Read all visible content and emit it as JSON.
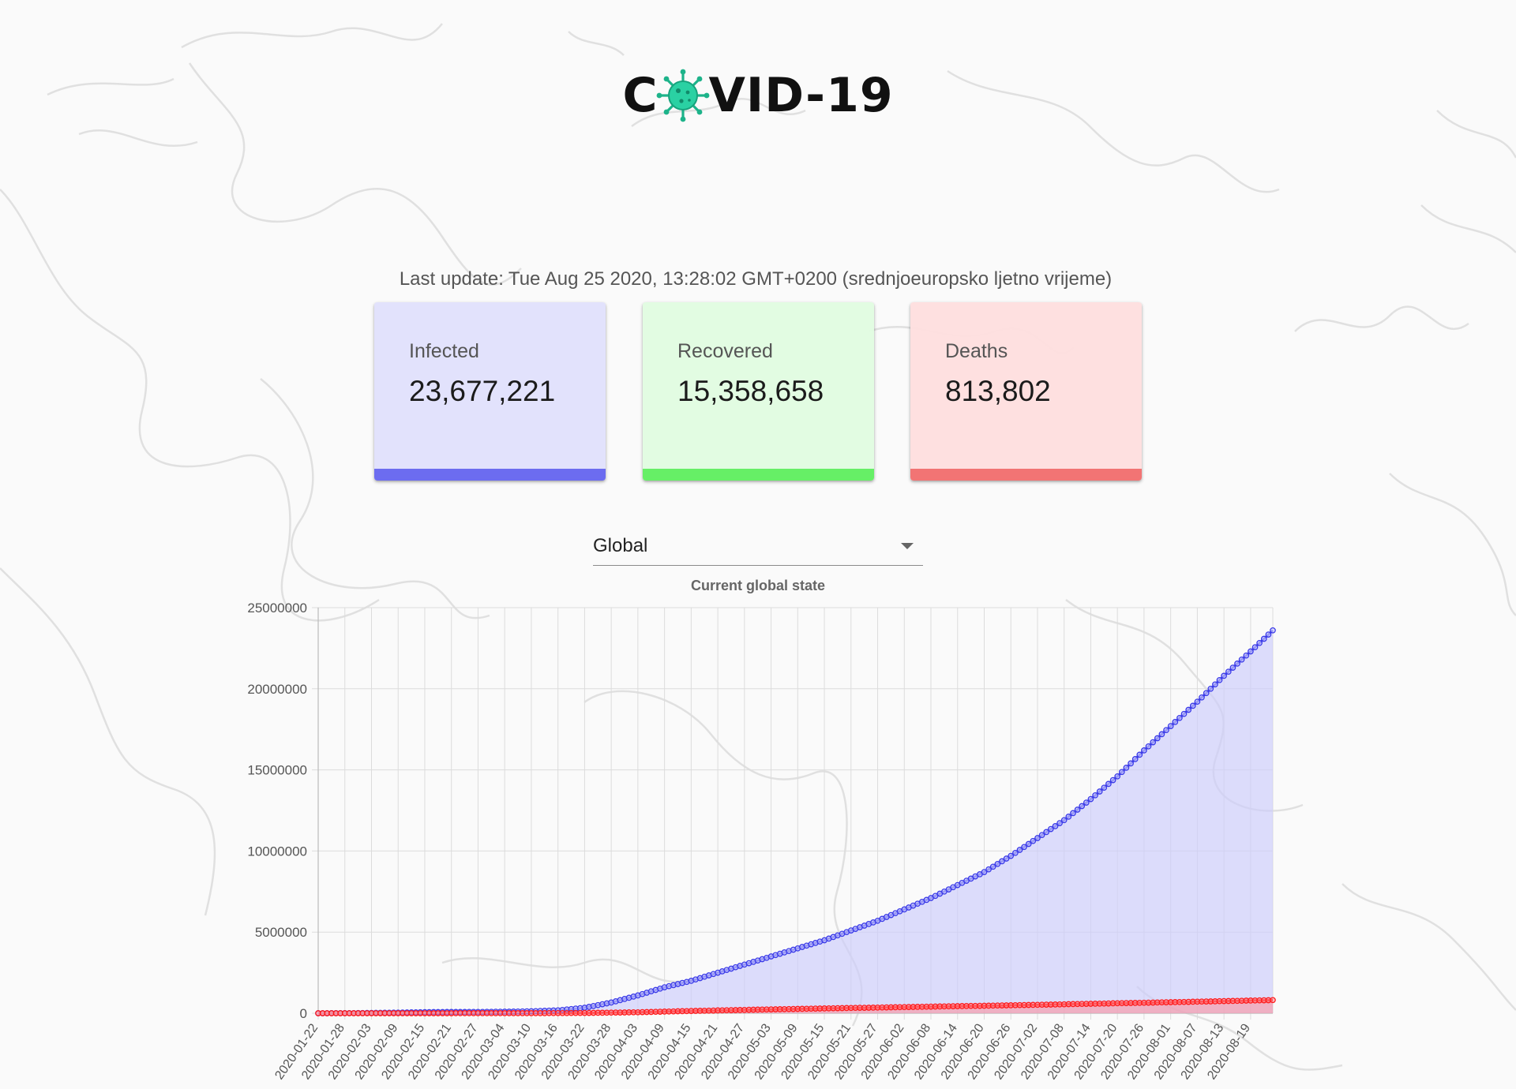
{
  "header": {
    "logo_left": "C",
    "logo_right": "VID-19"
  },
  "update": {
    "label": "Last update:",
    "timestamp": "Tue Aug 25 2020, 13:28:02 GMT+0200 (srednjoeuropsko ljetno vrijeme)"
  },
  "cards": [
    {
      "label": "Infected",
      "value": "23,677,221",
      "color": "#6c6cf0"
    },
    {
      "label": "Recovered",
      "value": "15,358,658",
      "color": "#66ef66"
    },
    {
      "label": "Deaths",
      "value": "813,802",
      "color": "#f27474"
    }
  ],
  "selector": {
    "selected": "Global"
  },
  "colors": {
    "virus": "#20c997",
    "infected_line": "#3a3ae8",
    "infected_fill": "rgba(205,205,252,0.65)",
    "deaths_line": "#ff1a1a",
    "deaths_fill": "rgba(255,140,150,0.55)"
  },
  "chart_data": {
    "type": "line",
    "title": "Current global state",
    "x_start": "2020-01-22",
    "x_end": "2020-08-24",
    "xtick_labels": [
      "2020-01-22",
      "2020-01-28",
      "2020-02-03",
      "2020-02-09",
      "2020-02-15",
      "2020-02-21",
      "2020-02-27",
      "2020-03-04",
      "2020-03-10",
      "2020-03-16",
      "2020-03-22",
      "2020-03-28",
      "2020-04-03",
      "2020-04-09",
      "2020-04-15",
      "2020-04-21",
      "2020-04-27",
      "2020-05-03",
      "2020-05-09",
      "2020-05-15",
      "2020-05-21",
      "2020-05-27",
      "2020-06-02",
      "2020-06-08",
      "2020-06-14",
      "2020-06-20",
      "2020-06-26",
      "2020-07-02",
      "2020-07-08",
      "2020-07-14",
      "2020-07-20",
      "2020-07-26",
      "2020-08-01",
      "2020-08-07",
      "2020-08-13",
      "2020-08-19"
    ],
    "ylim": [
      0,
      25000000
    ],
    "yticks": [
      0,
      5000000,
      10000000,
      15000000,
      20000000,
      25000000
    ],
    "grid": true,
    "series": [
      {
        "key": "infected",
        "points": [
          [
            "2020-01-22",
            550
          ],
          [
            "2020-01-28",
            6000
          ],
          [
            "2020-02-03",
            20000
          ],
          [
            "2020-02-09",
            40000
          ],
          [
            "2020-02-15",
            69000
          ],
          [
            "2020-02-21",
            77000
          ],
          [
            "2020-02-27",
            83000
          ],
          [
            "2020-03-04",
            95000
          ],
          [
            "2020-03-10",
            120000
          ],
          [
            "2020-03-16",
            180000
          ],
          [
            "2020-03-22",
            340000
          ],
          [
            "2020-03-28",
            660000
          ],
          [
            "2020-04-03",
            1100000
          ],
          [
            "2020-04-09",
            1600000
          ],
          [
            "2020-04-15",
            2000000
          ],
          [
            "2020-04-21",
            2500000
          ],
          [
            "2020-04-27",
            3000000
          ],
          [
            "2020-05-03",
            3500000
          ],
          [
            "2020-05-09",
            4000000
          ],
          [
            "2020-05-15",
            4500000
          ],
          [
            "2020-05-21",
            5100000
          ],
          [
            "2020-05-27",
            5700000
          ],
          [
            "2020-06-02",
            6400000
          ],
          [
            "2020-06-08",
            7100000
          ],
          [
            "2020-06-14",
            7900000
          ],
          [
            "2020-06-20",
            8700000
          ],
          [
            "2020-06-26",
            9700000
          ],
          [
            "2020-07-02",
            10800000
          ],
          [
            "2020-07-08",
            11900000
          ],
          [
            "2020-07-14",
            13200000
          ],
          [
            "2020-07-20",
            14600000
          ],
          [
            "2020-07-26",
            16200000
          ],
          [
            "2020-08-01",
            17700000
          ],
          [
            "2020-08-07",
            19200000
          ],
          [
            "2020-08-13",
            20800000
          ],
          [
            "2020-08-19",
            22300000
          ],
          [
            "2020-08-24",
            23600000
          ]
        ]
      },
      {
        "key": "deaths",
        "points": [
          [
            "2020-01-22",
            17
          ],
          [
            "2020-02-15",
            1700
          ],
          [
            "2020-03-10",
            4300
          ],
          [
            "2020-03-22",
            16000
          ],
          [
            "2020-04-03",
            60000
          ],
          [
            "2020-04-15",
            140000
          ],
          [
            "2020-05-03",
            240000
          ],
          [
            "2020-06-02",
            380000
          ],
          [
            "2020-07-02",
            520000
          ],
          [
            "2020-08-01",
            680000
          ],
          [
            "2020-08-24",
            810000
          ]
        ]
      }
    ]
  }
}
